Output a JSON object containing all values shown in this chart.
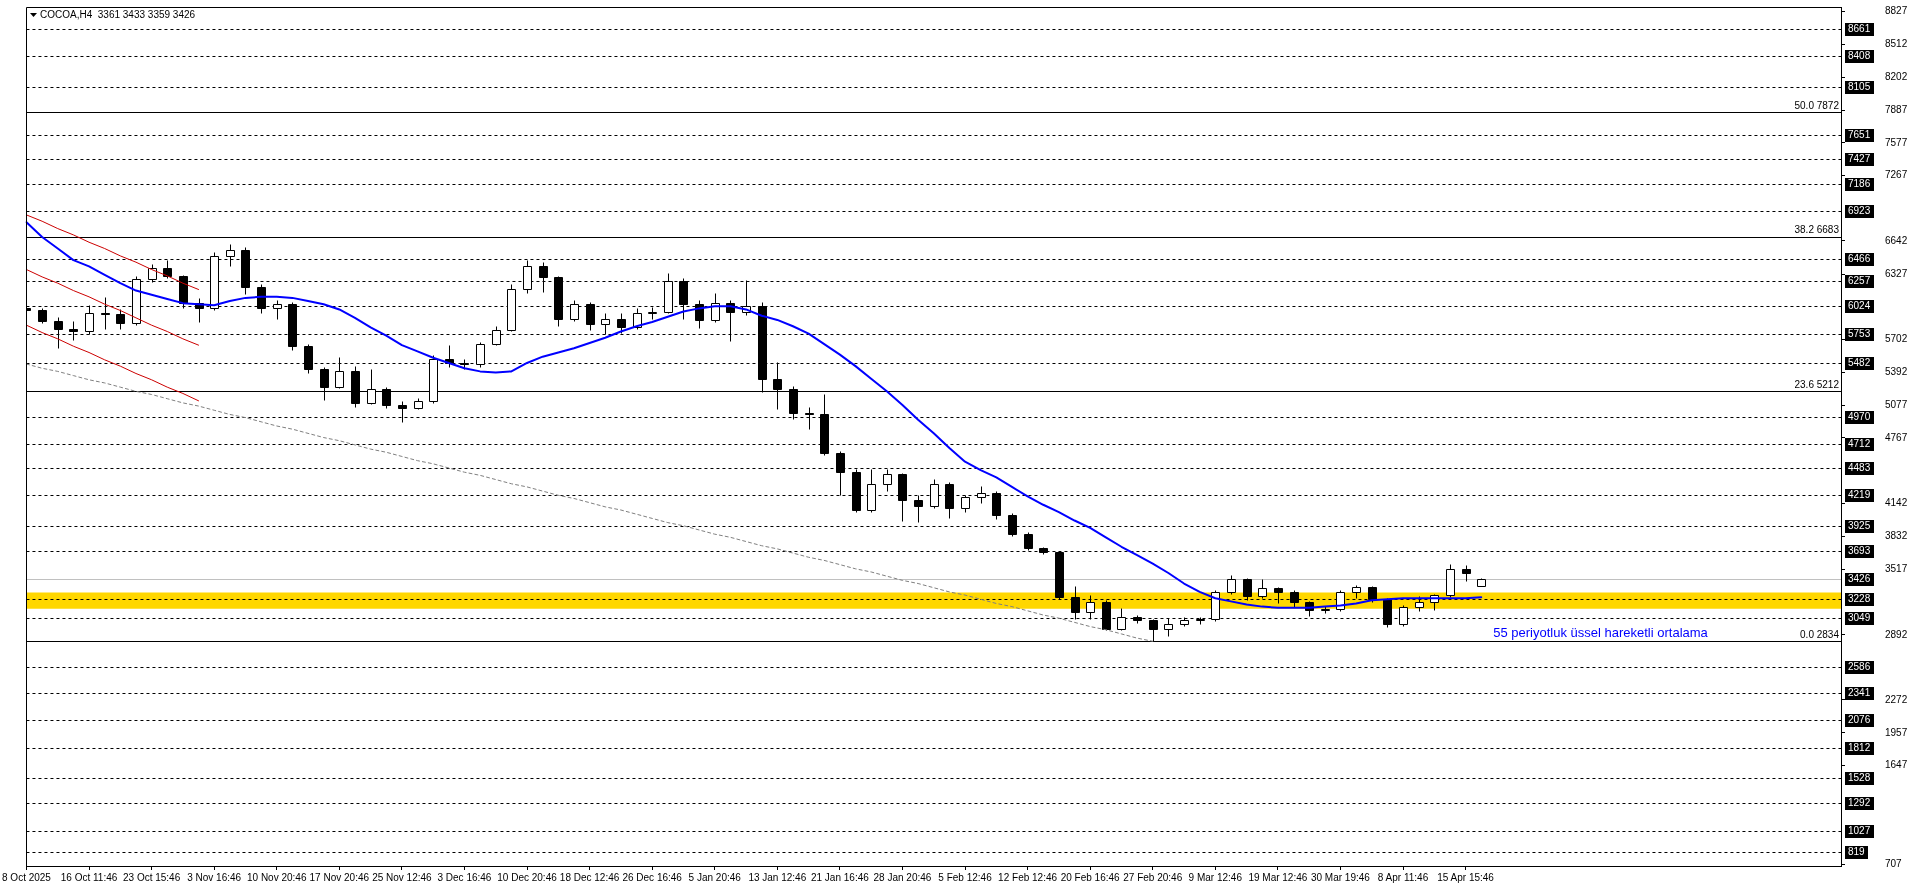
{
  "chart_data": {
    "type": "candlestick",
    "title": "COCOA,H4  3361 3433 3359 3426",
    "color": "#000000",
    "categories": [
      "8 Oct 2025",
      null,
      null,
      null,
      "16 Oct 11:46",
      null,
      null,
      null,
      "23 Oct 15:46",
      null,
      null,
      null,
      "3 Nov 16:46",
      null,
      null,
      null,
      "10 Nov 20:46",
      null,
      null,
      null,
      "17 Nov 20:46",
      null,
      null,
      null,
      "25 Nov 12:46",
      null,
      null,
      null,
      "3 Dec 16:46",
      null,
      null,
      null,
      "10 Dec 20:46",
      null,
      null,
      null,
      "18 Dec 12:46",
      null,
      null,
      null,
      "26 Dec 16:46",
      null,
      null,
      null,
      "5 Jan 20:46",
      null,
      null,
      null,
      "13 Jan 12:46",
      null,
      null,
      null,
      "21 Jan 16:46",
      null,
      null,
      null,
      "28 Jan 20:46",
      null,
      null,
      null,
      "5 Feb 12:46",
      null,
      null,
      null,
      "12 Feb 12:46",
      null,
      null,
      null,
      "20 Feb 16:46",
      null,
      null,
      null,
      "27 Feb 20:46",
      null,
      null,
      null,
      "9 Mar 12:46",
      null,
      null,
      null,
      "19 Mar 12:46",
      null,
      null,
      null,
      "30 Mar 19:46",
      null,
      null,
      null,
      "8 Apr 11:46",
      null,
      null,
      null,
      "15 Apr 15:46",
      null,
      null,
      null,
      null,
      null,
      null,
      null,
      null,
      null,
      null,
      null,
      null,
      null,
      null,
      null,
      null,
      null,
      null,
      null,
      null,
      null,
      null,
      null,
      null
    ],
    "ohlc": [
      [
        6000,
        6040,
        5950,
        5980
      ],
      [
        5980,
        6000,
        5860,
        5880
      ],
      [
        5880,
        5920,
        5620,
        5800
      ],
      [
        5800,
        5880,
        5700,
        5780
      ],
      [
        5780,
        6030,
        5760,
        5960
      ],
      [
        5960,
        6110,
        5800,
        5950
      ],
      [
        5950,
        5990,
        5800,
        5860
      ],
      [
        5860,
        6310,
        5840,
        6280
      ],
      [
        6280,
        6420,
        6250,
        6380
      ],
      [
        6380,
        6460,
        6290,
        6310
      ],
      [
        6310,
        6320,
        6000,
        6050
      ],
      [
        6050,
        6100,
        5870,
        6000
      ],
      [
        6000,
        6540,
        5980,
        6500
      ],
      [
        6500,
        6610,
        6400,
        6560
      ],
      [
        6560,
        6580,
        6140,
        6200
      ],
      [
        6200,
        6230,
        5960,
        6000
      ],
      [
        6000,
        6080,
        5900,
        6040
      ],
      [
        6040,
        6060,
        5600,
        5640
      ],
      [
        5640,
        5660,
        5380,
        5420
      ],
      [
        5420,
        5440,
        5130,
        5250
      ],
      [
        5250,
        5540,
        5240,
        5400
      ],
      [
        5400,
        5450,
        5060,
        5100
      ],
      [
        5100,
        5420,
        5090,
        5230
      ],
      [
        5230,
        5250,
        5050,
        5080
      ],
      [
        5080,
        5120,
        4920,
        5050
      ],
      [
        5050,
        5150,
        5040,
        5120
      ],
      [
        5120,
        5560,
        5100,
        5520
      ],
      [
        5520,
        5650,
        5440,
        5480
      ],
      [
        5480,
        5520,
        5420,
        5470
      ],
      [
        5470,
        5680,
        5440,
        5660
      ],
      [
        5660,
        5830,
        5650,
        5790
      ],
      [
        5790,
        6230,
        5780,
        6180
      ],
      [
        6180,
        6460,
        6150,
        6400
      ],
      [
        6400,
        6440,
        6160,
        6300
      ],
      [
        6300,
        6310,
        5830,
        5900
      ],
      [
        5900,
        6080,
        5880,
        6040
      ],
      [
        6040,
        6060,
        5790,
        5850
      ],
      [
        5850,
        5960,
        5760,
        5900
      ],
      [
        5900,
        5960,
        5770,
        5820
      ],
      [
        5820,
        6000,
        5800,
        5960
      ],
      [
        5960,
        6010,
        5900,
        5970
      ],
      [
        5970,
        6340,
        5960,
        6260
      ],
      [
        6260,
        6290,
        5900,
        6040
      ],
      [
        6040,
        6080,
        5810,
        5890
      ],
      [
        5890,
        6150,
        5870,
        6050
      ],
      [
        6050,
        6080,
        5690,
        5970
      ],
      [
        5970,
        6270,
        5940,
        6020
      ],
      [
        6020,
        6060,
        5200,
        5330
      ],
      [
        5330,
        5490,
        5040,
        5230
      ],
      [
        5230,
        5260,
        4950,
        5000
      ],
      [
        5000,
        5060,
        4850,
        4990
      ],
      [
        4990,
        5180,
        4600,
        4620
      ],
      [
        4620,
        4640,
        4220,
        4440
      ],
      [
        4440,
        4470,
        4060,
        4080
      ],
      [
        4080,
        4470,
        4060,
        4330
      ],
      [
        4330,
        4470,
        4260,
        4420
      ],
      [
        4420,
        4430,
        3980,
        4180
      ],
      [
        4180,
        4220,
        3970,
        4120
      ],
      [
        4120,
        4380,
        4100,
        4330
      ],
      [
        4330,
        4350,
        4000,
        4100
      ],
      [
        4100,
        4220,
        4060,
        4200
      ],
      [
        4200,
        4310,
        4150,
        4240
      ],
      [
        4240,
        4260,
        3990,
        4030
      ],
      [
        4030,
        4050,
        3830,
        3850
      ],
      [
        3850,
        3870,
        3700,
        3720
      ],
      [
        3720,
        3730,
        3660,
        3680
      ],
      [
        3680,
        3690,
        3230,
        3250
      ],
      [
        3250,
        3360,
        3040,
        3110
      ],
      [
        3110,
        3270,
        3040,
        3200
      ],
      [
        3200,
        3220,
        2940,
        2950
      ],
      [
        2950,
        3150,
        2940,
        3060
      ],
      [
        3060,
        3080,
        3000,
        3030
      ],
      [
        3030,
        3040,
        2834,
        2950
      ],
      [
        2950,
        3050,
        2880,
        2990
      ],
      [
        2990,
        3060,
        2980,
        3030
      ],
      [
        3030,
        3060,
        2990,
        3040
      ],
      [
        3040,
        3320,
        3020,
        3300
      ],
      [
        3300,
        3460,
        3280,
        3420
      ],
      [
        3420,
        3430,
        3220,
        3260
      ],
      [
        3260,
        3420,
        3240,
        3340
      ],
      [
        3340,
        3350,
        3190,
        3300
      ],
      [
        3300,
        3320,
        3160,
        3200
      ],
      [
        3200,
        3210,
        3070,
        3130
      ],
      [
        3130,
        3170,
        3100,
        3140
      ],
      [
        3140,
        3320,
        3120,
        3300
      ],
      [
        3300,
        3370,
        3240,
        3350
      ],
      [
        3350,
        3360,
        3200,
        3230
      ],
      [
        3230,
        3240,
        2970,
        2990
      ],
      [
        2990,
        3180,
        2980,
        3160
      ],
      [
        3160,
        3260,
        3120,
        3200
      ],
      [
        3200,
        3280,
        3130,
        3270
      ],
      [
        3270,
        3570,
        3250,
        3520
      ],
      [
        3520,
        3560,
        3400,
        3480
      ],
      [
        3361,
        3433,
        3359,
        3426
      ],
      null,
      null,
      null,
      null,
      null,
      null,
      null,
      null,
      null,
      null,
      null,
      null,
      null,
      null,
      null,
      null,
      null,
      null,
      null,
      null,
      null,
      null,
      null
    ],
    "series": [
      {
        "type": "line",
        "name": "55 periyotluk üssel hareketli ortalama",
        "color": "#0000ff",
        "values": [
          6820,
          6680,
          6570,
          6460,
          6400,
          6320,
          6240,
          6170,
          6130,
          6090,
          6050,
          6040,
          6030,
          6070,
          6100,
          6110,
          6110,
          6100,
          6070,
          6040,
          5990,
          5910,
          5820,
          5740,
          5650,
          5590,
          5530,
          5480,
          5430,
          5400,
          5390,
          5400,
          5480,
          5540,
          5580,
          5620,
          5670,
          5720,
          5780,
          5830,
          5870,
          5920,
          5970,
          6000,
          6020,
          6020,
          5990,
          5930,
          5890,
          5830,
          5760,
          5660,
          5560,
          5450,
          5330,
          5210,
          5080,
          4940,
          4810,
          4670,
          4540,
          4460,
          4390,
          4300,
          4210,
          4130,
          4060,
          3980,
          3910,
          3820,
          3730,
          3650,
          3570,
          3480,
          3380,
          3300,
          3240,
          3210,
          3180,
          3160,
          3150,
          3150,
          3150,
          3160,
          3170,
          3190,
          3220,
          3230,
          3240,
          3240,
          3240,
          3240,
          3240,
          3250,
          null,
          null,
          null,
          null,
          null,
          null,
          null,
          null,
          null,
          null,
          null,
          null,
          null,
          null,
          null,
          null,
          null,
          null,
          null,
          null,
          null,
          null,
          null
        ]
      },
      {
        "type": "line",
        "color": "#cc0000",
        "values": [
          6890,
          6830,
          6760,
          6700,
          6630,
          6570,
          6500,
          6440,
          6370,
          6310,
          6240,
          6180,
          null,
          null,
          null,
          null,
          null,
          null,
          null,
          null,
          null,
          null,
          null,
          null,
          null,
          null,
          null,
          null,
          null,
          null,
          null,
          null,
          null,
          null,
          null,
          null,
          null,
          null,
          null,
          null,
          null,
          null,
          null,
          null,
          null,
          null,
          null,
          null,
          null,
          null,
          null,
          null,
          null,
          null,
          null,
          null,
          null,
          null,
          null,
          null,
          null,
          null,
          null,
          null,
          null,
          null,
          null,
          null,
          null,
          null,
          null,
          null,
          null,
          null,
          null,
          null,
          null,
          null,
          null,
          null,
          null,
          null,
          null,
          null,
          null,
          null,
          null,
          null,
          null,
          null,
          null,
          null,
          null,
          null,
          null,
          null,
          null,
          null,
          null,
          null,
          null,
          null,
          null,
          null,
          null,
          null,
          null,
          null,
          null,
          null,
          null,
          null,
          null,
          null,
          null,
          null,
          null
        ]
      },
      {
        "type": "line",
        "color": "#cc0000",
        "values": [
          6370,
          6300,
          6240,
          6170,
          6110,
          6040,
          5980,
          5910,
          5840,
          5780,
          5710,
          5650,
          null,
          null,
          null,
          null,
          null,
          null,
          null,
          null,
          null,
          null,
          null,
          null,
          null,
          null,
          null,
          null,
          null,
          null,
          null,
          null,
          null,
          null,
          null,
          null,
          null,
          null,
          null,
          null,
          null,
          null,
          null,
          null,
          null,
          null,
          null,
          null,
          null,
          null,
          null,
          null,
          null,
          null,
          null,
          null,
          null,
          null,
          null,
          null,
          null,
          null,
          null,
          null,
          null,
          null,
          null,
          null,
          null,
          null,
          null,
          null,
          null,
          null,
          null,
          null,
          null,
          null,
          null,
          null,
          null,
          null,
          null,
          null,
          null,
          null,
          null,
          null,
          null,
          null,
          null,
          null,
          null,
          null,
          null,
          null,
          null,
          null,
          null,
          null,
          null,
          null,
          null,
          null,
          null,
          null,
          null,
          null,
          null,
          null,
          null,
          null,
          null,
          null,
          null,
          null,
          null
        ]
      },
      {
        "type": "line",
        "color": "#cc0000",
        "values": [
          5840,
          5770,
          5710,
          5640,
          5580,
          5510,
          5450,
          5380,
          5320,
          5250,
          5190,
          5120,
          null,
          null,
          null,
          null,
          null,
          null,
          null,
          null,
          null,
          null,
          null,
          null,
          null,
          null,
          null,
          null,
          null,
          null,
          null,
          null,
          null,
          null,
          null,
          null,
          null,
          null,
          null,
          null,
          null,
          null,
          null,
          null,
          null,
          null,
          null,
          null,
          null,
          null,
          null,
          null,
          null,
          null,
          null,
          null,
          null,
          null,
          null,
          null,
          null,
          null,
          null,
          null,
          null,
          null,
          null,
          null,
          null,
          null,
          null,
          null,
          null,
          null,
          null,
          null,
          null,
          null,
          null,
          null,
          null,
          null,
          null,
          null,
          null,
          null,
          null,
          null,
          null,
          null,
          null,
          null,
          null,
          null,
          null,
          null,
          null,
          null,
          null,
          null,
          null,
          null,
          null,
          null,
          null,
          null,
          null,
          null,
          null,
          null,
          null,
          null,
          null,
          null,
          null,
          null,
          null
        ]
      },
      {
        "type": "line",
        "color": "#808080",
        "line_style": "dashed",
        "values": [
          5470,
          5430,
          5400,
          5360,
          5320,
          5290,
          5250,
          5210,
          5180,
          5140,
          5100,
          5070,
          5030,
          4990,
          4960,
          4920,
          4880,
          4850,
          4810,
          4770,
          4740,
          4700,
          4660,
          4630,
          4590,
          4550,
          4520,
          4480,
          4440,
          4410,
          4370,
          4330,
          4300,
          4260,
          4220,
          4190,
          4150,
          4110,
          4080,
          4040,
          4000,
          3960,
          3930,
          3890,
          3850,
          3820,
          3780,
          3740,
          3710,
          3670,
          3630,
          3600,
          3560,
          3520,
          3490,
          3450,
          3410,
          3380,
          3340,
          3300,
          3270,
          3230,
          3190,
          3160,
          3120,
          3080,
          3050,
          3010,
          2970,
          2940,
          2900,
          2860,
          2830,
          null,
          null,
          null,
          null,
          null,
          null,
          null,
          null,
          null,
          null,
          null,
          null,
          null,
          null,
          null,
          null,
          null,
          null,
          null,
          null,
          null,
          null,
          null,
          null,
          null,
          null,
          null,
          null,
          null,
          null,
          null,
          null,
          null,
          null,
          null,
          null,
          null,
          null,
          null,
          null,
          null,
          null,
          null,
          null
        ]
      }
    ],
    "ylim": [
      690,
      8870
    ],
    "yticks": [
      8827,
      8512,
      8202,
      7887,
      7577,
      7267,
      6642,
      6327,
      5702,
      5392,
      5077,
      4767,
      4142,
      3832,
      3517,
      2892,
      2272,
      1957,
      1647,
      707
    ],
    "bands": [
      {
        "axis": "y",
        "from": 3140,
        "to": 3295,
        "color": "#ffd700"
      }
    ],
    "ref_lines": [
      {
        "axis": "y",
        "value": 8661,
        "label": "8661",
        "color": "#000000",
        "line_style": "dashed"
      },
      {
        "axis": "y",
        "value": 8408,
        "label": "8408",
        "color": "#000000",
        "line_style": "dashed"
      },
      {
        "axis": "y",
        "value": 8105,
        "label": "8105",
        "color": "#000000",
        "line_style": "dashed"
      },
      {
        "axis": "y",
        "value": 7651,
        "label": "7651",
        "color": "#000000",
        "line_style": "dashed"
      },
      {
        "axis": "y",
        "value": 7427,
        "label": "7427",
        "color": "#000000",
        "line_style": "dashed"
      },
      {
        "axis": "y",
        "value": 7186,
        "label": "7186",
        "color": "#000000",
        "line_style": "dashed"
      },
      {
        "axis": "y",
        "value": 6923,
        "label": "6923",
        "color": "#000000",
        "line_style": "dashed"
      },
      {
        "axis": "y",
        "value": 6466,
        "label": "6466",
        "color": "#000000",
        "line_style": "dashed"
      },
      {
        "axis": "y",
        "value": 6257,
        "label": "6257",
        "color": "#000000",
        "line_style": "dashed"
      },
      {
        "axis": "y",
        "value": 6024,
        "label": "6024",
        "color": "#000000",
        "line_style": "dashed"
      },
      {
        "axis": "y",
        "value": 5753,
        "label": "5753",
        "color": "#000000",
        "line_style": "dashed"
      },
      {
        "axis": "y",
        "value": 5482,
        "label": "5482",
        "color": "#000000",
        "line_style": "dashed"
      },
      {
        "axis": "y",
        "value": 4970,
        "label": "4970",
        "color": "#000000",
        "line_style": "dashed"
      },
      {
        "axis": "y",
        "value": 4712,
        "label": "4712",
        "color": "#000000",
        "line_style": "dashed"
      },
      {
        "axis": "y",
        "value": 4483,
        "label": "4483",
        "color": "#000000",
        "line_style": "dashed"
      },
      {
        "axis": "y",
        "value": 4219,
        "label": "4219",
        "color": "#000000",
        "line_style": "dashed"
      },
      {
        "axis": "y",
        "value": 3925,
        "label": "3925",
        "color": "#000000",
        "line_style": "dashed"
      },
      {
        "axis": "y",
        "value": 3693,
        "label": "3693",
        "color": "#000000",
        "line_style": "dashed"
      },
      {
        "axis": "y",
        "value": 3228,
        "label": "3228",
        "color": "#000000",
        "line_style": "dashed"
      },
      {
        "axis": "y",
        "value": 3049,
        "label": "3049",
        "color": "#000000",
        "line_style": "dashed"
      },
      {
        "axis": "y",
        "value": 2586,
        "label": "2586",
        "color": "#000000",
        "line_style": "dashed"
      },
      {
        "axis": "y",
        "value": 2341,
        "label": "2341",
        "color": "#000000",
        "line_style": "dashed"
      },
      {
        "axis": "y",
        "value": 2076,
        "label": "2076",
        "color": "#000000",
        "line_style": "dashed"
      },
      {
        "axis": "y",
        "value": 1812,
        "label": "1812",
        "color": "#000000",
        "line_style": "dashed"
      },
      {
        "axis": "y",
        "value": 1528,
        "label": "1528",
        "color": "#000000",
        "line_style": "dashed"
      },
      {
        "axis": "y",
        "value": 1292,
        "label": "1292",
        "color": "#000000",
        "line_style": "dashed"
      },
      {
        "axis": "y",
        "value": 1027,
        "label": "1027",
        "color": "#000000",
        "line_style": "dashed"
      },
      {
        "axis": "y",
        "value": 819,
        "label": "819",
        "color": "#000000",
        "line_style": "dashed"
      },
      {
        "axis": "y",
        "value": 7872,
        "color": "#000000",
        "line_style": "solid"
      },
      {
        "axis": "y",
        "value": 6683,
        "color": "#000000",
        "line_style": "solid"
      },
      {
        "axis": "y",
        "value": 5212,
        "color": "#000000",
        "line_style": "solid"
      },
      {
        "axis": "y",
        "value": 2834,
        "color": "#000000",
        "line_style": "solid"
      },
      {
        "axis": "y",
        "value": 3426,
        "label": "3426",
        "color": "#c0c0c0",
        "line_style": "solid"
      }
    ],
    "annotations": [
      {
        "text": "50.0 7872",
        "y": 7872
      },
      {
        "text": "38.2 6683",
        "y": 6683
      },
      {
        "text": "23.6 5212",
        "y": 5212
      },
      {
        "text": "0.0 2834",
        "y": 2834
      }
    ]
  }
}
